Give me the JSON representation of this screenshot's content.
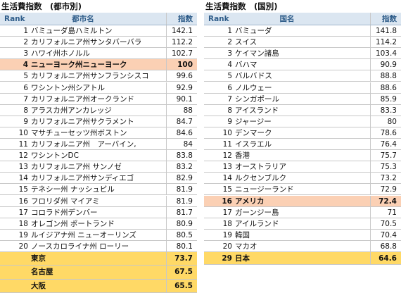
{
  "tables": [
    {
      "title": "生活費指数　(都市別)",
      "header": [
        "Rank",
        "都市名",
        "指数"
      ],
      "rows": [
        {
          "rank": 1,
          "name": "バミューダ島ハミルトン",
          "index": 142.1
        },
        {
          "rank": 2,
          "name": "カリフォルニア州サンタバーバラ",
          "index": 112.2
        },
        {
          "rank": 3,
          "name": "ハワイ州ホノルル",
          "index": 102.7
        },
        {
          "rank": 4,
          "name": "ニューヨーク州ニューヨーク",
          "index": 100,
          "color": "#fbd0b4"
        },
        {
          "rank": 5,
          "name": "カリフォルニア州サンフランシスコ",
          "index": 99.6
        },
        {
          "rank": 6,
          "name": "ワシントン州シアトル",
          "index": 92.9
        },
        {
          "rank": 7,
          "name": "カリフォルニア州オークランド",
          "index": 90.1
        },
        {
          "rank": 8,
          "name": "アラスカ州アンカレッジ",
          "index": 88
        },
        {
          "rank": 9,
          "name": "カリフォルニア州サクラメント",
          "index": 84.7
        },
        {
          "rank": 10,
          "name": "マサチューセッツ州ボストン",
          "index": 84.6
        },
        {
          "rank": 11,
          "name": "カリフォルニア州　アーバイン,",
          "index": 84
        },
        {
          "rank": 12,
          "name": "ワシントンDC",
          "index": 83.8
        },
        {
          "rank": 13,
          "name": "カリフォルニア州 サンノゼ",
          "index": 83.2
        },
        {
          "rank": 14,
          "name": "カリフォルニア州サンディエゴ",
          "index": 82.9
        },
        {
          "rank": 15,
          "name": "テネシー州 ナッシュビル",
          "index": 81.9
        },
        {
          "rank": 16,
          "name": "フロリダ州 マイアミ",
          "index": 81.9
        },
        {
          "rank": 17,
          "name": "コロラド州デンバー",
          "index": 81.7
        },
        {
          "rank": 18,
          "name": "オレゴン州 ポートランド",
          "index": 80.9
        },
        {
          "rank": 19,
          "name": "ルイジアナ州 ニューオーリンズ",
          "index": 80.5
        },
        {
          "rank": 20,
          "name": "ノースカロライナ州 ローリー",
          "index": 80.1
        },
        {
          "name": "東京",
          "index": 73.7,
          "color": "#ffd966"
        },
        {
          "name": "名古屋",
          "index": 67.5,
          "color": "#ffd966"
        },
        {
          "name": "大阪",
          "index": 65.5,
          "color": "#ffd966"
        }
      ]
    },
    {
      "title": "生活費指数　(国別)",
      "header": [
        "Rank",
        "国名",
        "指数"
      ],
      "rows": [
        {
          "rank": 1,
          "name": "バミューダ",
          "index": 141.8
        },
        {
          "rank": 2,
          "name": "スイス",
          "index": 114.2
        },
        {
          "rank": 3,
          "name": "ケイマン諸島",
          "index": 103.4
        },
        {
          "rank": 4,
          "name": "バハマ",
          "index": 90.9
        },
        {
          "rank": 5,
          "name": "バルバドス",
          "index": 88.8
        },
        {
          "rank": 6,
          "name": "ノルウェー",
          "index": 88.6
        },
        {
          "rank": 7,
          "name": "シンガポール",
          "index": 85.9
        },
        {
          "rank": 8,
          "name": "アイスランド",
          "index": 83.3
        },
        {
          "rank": 9,
          "name": "ジャージー",
          "index": 80
        },
        {
          "rank": 10,
          "name": "デンマーク",
          "index": 78.6
        },
        {
          "rank": 11,
          "name": "イスラエル",
          "index": 76.4
        },
        {
          "rank": 12,
          "name": "香港",
          "index": 75.7
        },
        {
          "rank": 13,
          "name": "オーストラリア",
          "index": 75.3
        },
        {
          "rank": 14,
          "name": "ルクセンブルク",
          "index": 73.2
        },
        {
          "rank": 15,
          "name": "ニュージーランド",
          "index": 72.9
        },
        {
          "rank": 16,
          "name": "アメリカ",
          "index": 72.4,
          "color": "#fbd0b4"
        },
        {
          "rank": 17,
          "name": "ガーンジー島",
          "index": 71
        },
        {
          "rank": 18,
          "name": "アイルランド",
          "index": 70.5
        },
        {
          "rank": 19,
          "name": "韓国",
          "index": 70.4
        },
        {
          "rank": 20,
          "name": "マカオ",
          "index": 68.8
        },
        {
          "rank": 29,
          "name": "日本",
          "index": 64.6,
          "color": "#ffd966"
        }
      ]
    }
  ]
}
